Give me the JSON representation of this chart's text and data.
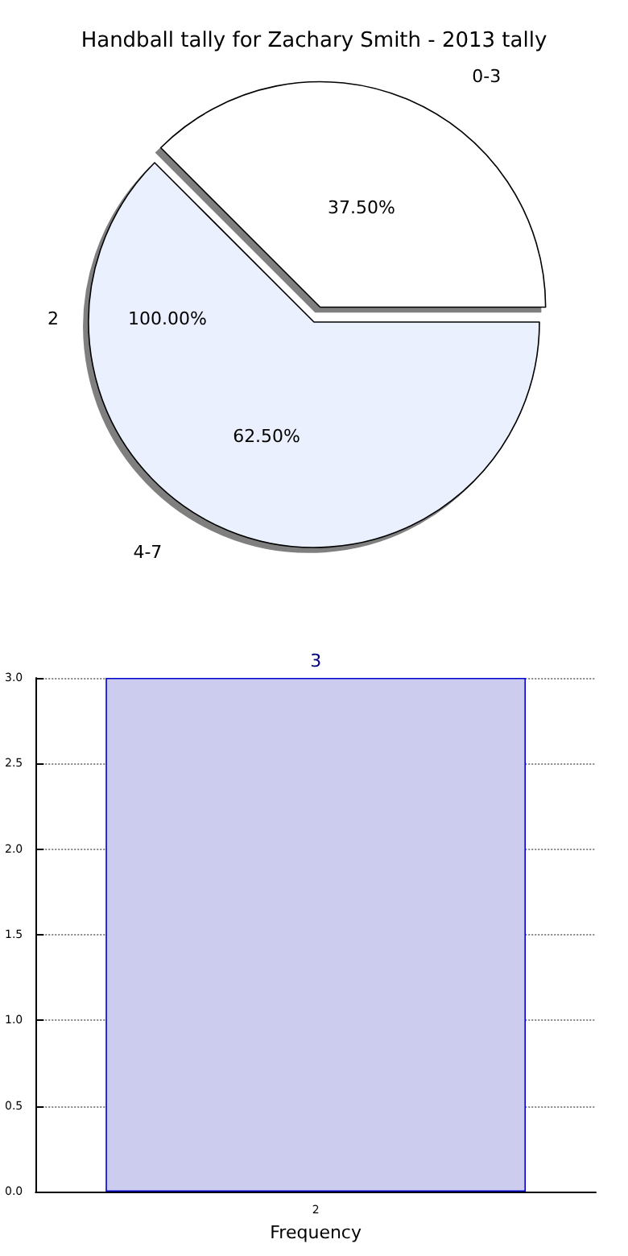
{
  "chart_data": [
    {
      "type": "pie",
      "title": "Handball tally for Zachary Smith - 2013 tally",
      "categories": [
        "0-3",
        "4-7"
      ],
      "values": [
        37.5,
        62.5
      ],
      "colors": [
        "#ffffff",
        "#eaf0fd"
      ],
      "value_labels": [
        "37.50%",
        "62.50%"
      ],
      "annotations": [
        "2",
        "100.00%"
      ]
    },
    {
      "type": "bar",
      "categories": [
        "2"
      ],
      "values": [
        3
      ],
      "color": "#ccccee",
      "data_labels": true,
      "xlabel": "Frequency",
      "ylim": [
        0,
        3
      ],
      "yticks": [
        {
          "value": 0,
          "label": "0.0"
        },
        {
          "value": 0.5,
          "label": "0.5"
        },
        {
          "value": 1,
          "label": "1.0"
        },
        {
          "value": 1.5,
          "label": "1.5"
        },
        {
          "value": 2,
          "label": "2.0"
        },
        {
          "value": 2.5,
          "label": "2.5"
        },
        {
          "value": 3,
          "label": "3.0"
        }
      ],
      "grid": true
    }
  ]
}
